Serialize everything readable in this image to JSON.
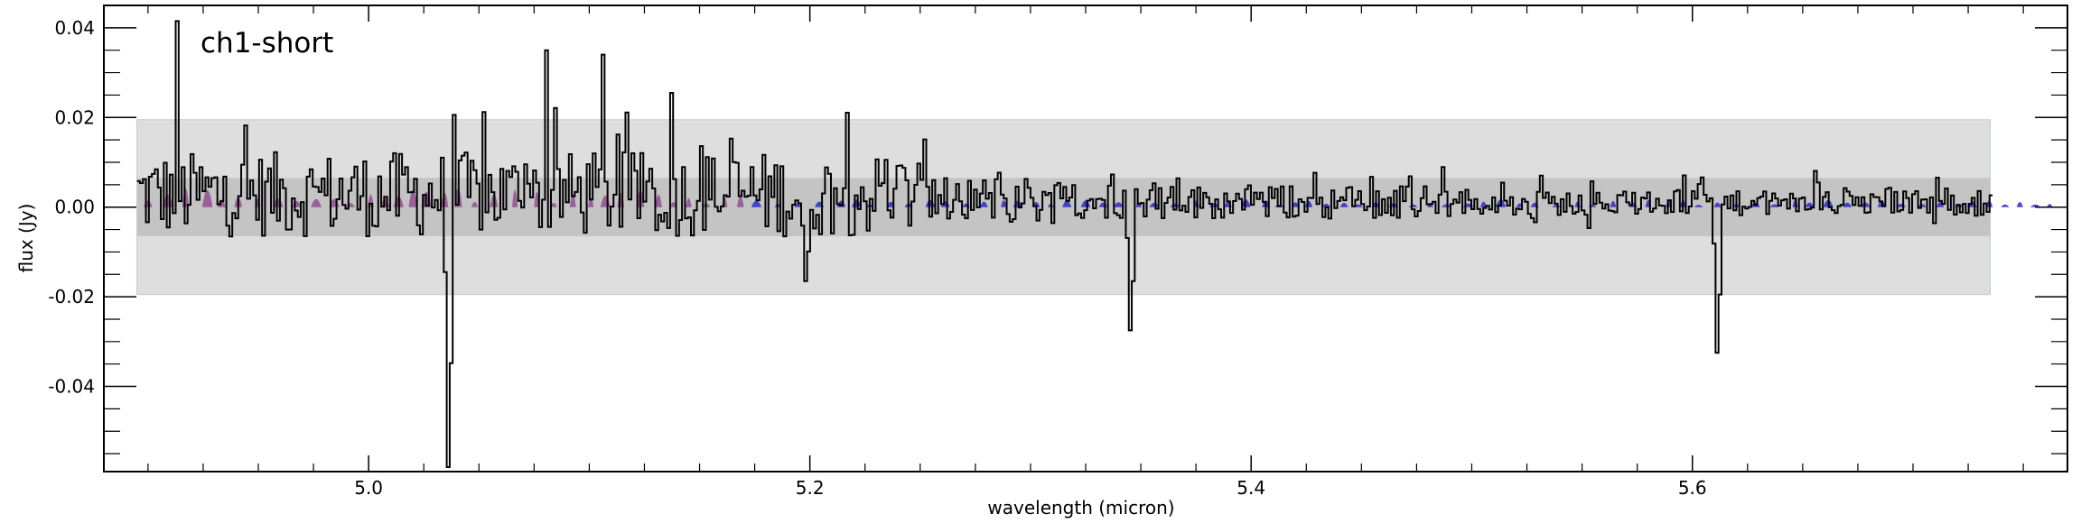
{
  "chart_data": {
    "type": "line",
    "title": "ch1-short",
    "xlabel": "wavelength (micron)",
    "ylabel": "flux (Jy)",
    "xlim": [
      4.88,
      5.77
    ],
    "ylim": [
      -0.059,
      0.045
    ],
    "x_ticks": [
      5.0,
      5.2,
      5.4,
      5.6
    ],
    "x_tick_labels": [
      "5.0",
      "5.2",
      "5.4",
      "5.6"
    ],
    "y_ticks": [
      0.04,
      0.02,
      0.0,
      -0.02,
      -0.04
    ],
    "y_tick_labels": [
      "0.04",
      "0.02",
      "0.00",
      "-0.02",
      "-0.04"
    ],
    "grid": false,
    "bands": [
      {
        "name": "outer band",
        "x_range": [
          4.895,
          5.735
        ],
        "y_range": [
          -0.0195,
          0.0195
        ],
        "color": "#dedede"
      },
      {
        "name": "inner band",
        "x_range": [
          4.895,
          5.735
        ],
        "y_range": [
          -0.0065,
          0.0065
        ],
        "color": "#c4c4c4"
      }
    ],
    "colors": {
      "spectrum": "#000000",
      "model_purple": "#8b3f8b",
      "model_blue": "#2b2bcc"
    },
    "features": [
      {
        "kind": "peak",
        "x": 4.912,
        "y": 0.0415
      },
      {
        "kind": "peak",
        "x": 5.08,
        "y": 0.035
      },
      {
        "kind": "peak",
        "x": 5.105,
        "y": 0.034
      },
      {
        "kind": "dip",
        "x": 5.035,
        "y": -0.058
      },
      {
        "kind": "dip",
        "x": 5.198,
        "y": -0.0165
      },
      {
        "kind": "dip",
        "x": 5.345,
        "y": -0.0275
      },
      {
        "kind": "dip",
        "x": 5.61,
        "y": -0.0325
      }
    ],
    "series": []
  }
}
